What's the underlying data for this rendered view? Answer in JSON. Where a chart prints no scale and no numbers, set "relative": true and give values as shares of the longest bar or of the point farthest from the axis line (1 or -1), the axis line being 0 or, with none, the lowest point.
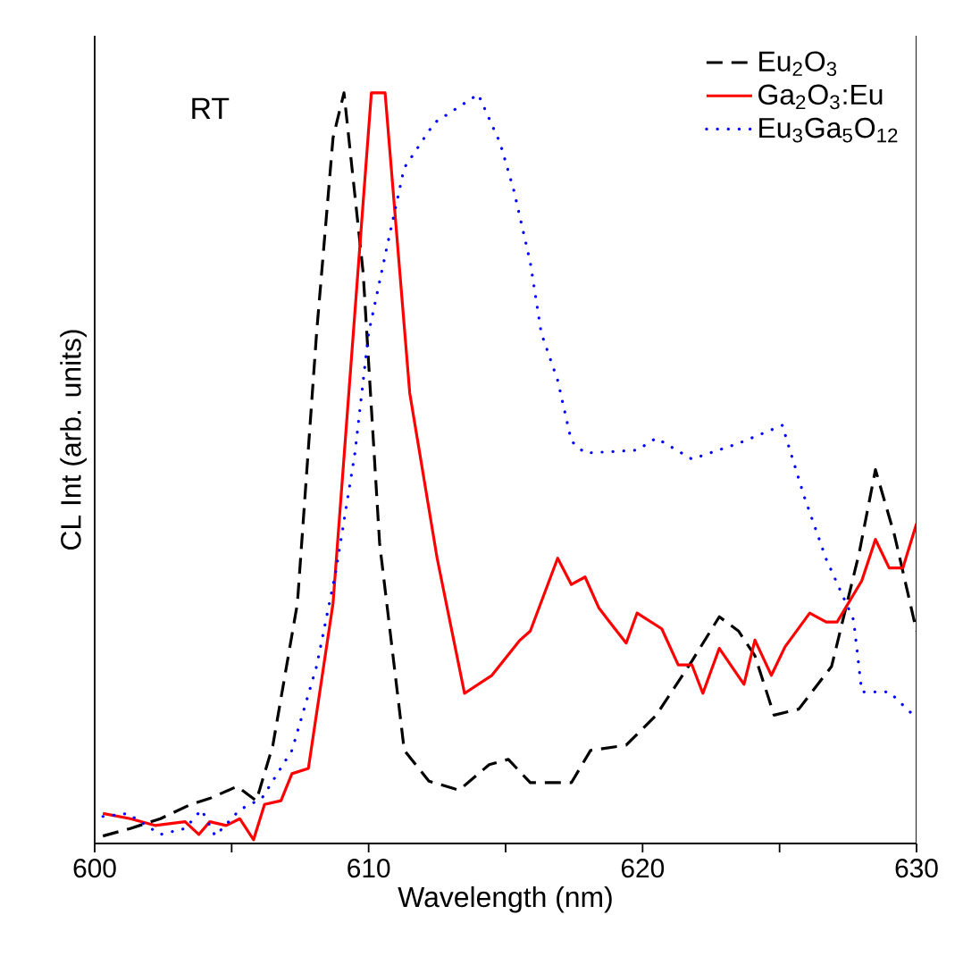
{
  "chart_data": {
    "type": "line",
    "relative": true,
    "xlabel": "Wavelength (nm)",
    "ylabel": "CL Int (arb. units)",
    "annotations": [
      "RT"
    ],
    "xlim": [
      600,
      630
    ],
    "xticks": [
      600,
      {
        "value": 605,
        "label": null
      },
      610,
      {
        "value": 615,
        "label": null
      },
      620,
      {
        "value": 625,
        "label": null
      },
      630
    ],
    "grid": false,
    "legend": "top right",
    "marker": "none",
    "series": [
      {
        "name": "Eu$_{2}$O$_{3}$",
        "color": "#000000",
        "line_style": "dashed",
        "x": [
          600.3,
          601.3,
          602.4,
          603.5,
          604.2,
          605.2,
          605.9,
          606.5,
          607.4,
          608.1,
          608.7,
          609.1,
          609.8,
          610.4,
          611.3,
          612.2,
          613.3,
          614.4,
          615.1,
          615.9,
          617.4,
          618.1,
          619.4,
          620.5,
          621.8,
          622.8,
          623.5,
          624.1,
          624.8,
          625.7,
          626.9,
          627.9,
          628.5,
          629.2,
          630
        ],
        "values": [
          0.01,
          0.02,
          0.033,
          0.052,
          0.06,
          0.076,
          0.057,
          0.13,
          0.32,
          0.68,
          0.94,
          1.0,
          0.76,
          0.4,
          0.124,
          0.083,
          0.071,
          0.105,
          0.112,
          0.081,
          0.081,
          0.124,
          0.131,
          0.171,
          0.243,
          0.302,
          0.283,
          0.25,
          0.171,
          0.179,
          0.236,
          0.386,
          0.498,
          0.41,
          0.283
        ]
      },
      {
        "name": "Ga$_{2}$O$_{3}$:Eu",
        "color": "#ff0000",
        "line_style": "solid",
        "x": [
          600.3,
          601.3,
          602.2,
          603.3,
          603.8,
          604.2,
          604.8,
          605.3,
          605.8,
          606.2,
          606.8,
          607.2,
          607.8,
          608.7,
          610.1,
          610.6,
          611.5,
          612.5,
          613.5,
          614.5,
          615.5,
          615.9,
          616.9,
          617.4,
          617.9,
          618.4,
          618.8,
          619.4,
          619.8,
          620.7,
          621.3,
          621.8,
          622.2,
          622.8,
          623.7,
          624.1,
          624.7,
          625.2,
          626.1,
          626.7,
          627.1,
          628.0,
          628.5,
          629.0,
          629.5,
          630
        ],
        "values": [
          0.04,
          0.033,
          0.024,
          0.029,
          0.012,
          0.029,
          0.024,
          0.033,
          0.005,
          0.052,
          0.057,
          0.093,
          0.1,
          0.32,
          1.0,
          1.0,
          0.6,
          0.38,
          0.2,
          0.224,
          0.27,
          0.283,
          0.38,
          0.345,
          0.355,
          0.314,
          0.295,
          0.267,
          0.307,
          0.286,
          0.238,
          0.238,
          0.2,
          0.26,
          0.212,
          0.271,
          0.224,
          0.262,
          0.307,
          0.295,
          0.295,
          0.35,
          0.405,
          0.367,
          0.367,
          0.426
        ]
      },
      {
        "name": "Eu$_{3}$Ga$_{5}$O$_{12}$",
        "color": "#0000ff",
        "line_style": "dotted",
        "x": [
          600.3,
          601.2,
          602.4,
          603.3,
          603.9,
          604.4,
          605.3,
          606.1,
          607.2,
          608.1,
          608.8,
          609.5,
          610.0,
          610.7,
          611.3,
          612.4,
          614.0,
          614.8,
          615.3,
          615.9,
          616.3,
          616.9,
          617.4,
          617.9,
          619.8,
          620.5,
          621.8,
          623.5,
          625.1,
          625.9,
          626.7,
          627.7,
          628.0,
          629.0,
          630
        ],
        "values": [
          0.036,
          0.04,
          0.012,
          0.02,
          0.045,
          0.01,
          0.045,
          0.06,
          0.124,
          0.236,
          0.362,
          0.52,
          0.68,
          0.8,
          0.9,
          0.96,
          0.998,
          0.933,
          0.87,
          0.774,
          0.68,
          0.617,
          0.536,
          0.52,
          0.524,
          0.54,
          0.512,
          0.533,
          0.557,
          0.462,
          0.379,
          0.298,
          0.202,
          0.202,
          0.167
        ]
      }
    ]
  }
}
